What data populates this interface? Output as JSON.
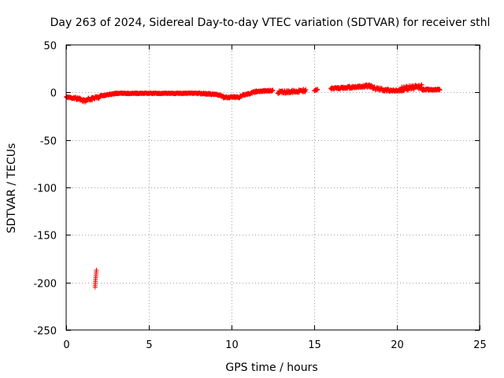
{
  "chart_data": {
    "type": "scatter",
    "title": "Day 263 of 2024, Sidereal Day-to-day VTEC variation (SDTVAR) for receiver sthl",
    "xlabel": "GPS time / hours",
    "ylabel": "SDTVAR / TECUs",
    "xlim": [
      0,
      25
    ],
    "ylim": [
      -250,
      50
    ],
    "xticks": [
      0,
      5,
      10,
      15,
      20,
      25
    ],
    "yticks": [
      -250,
      -200,
      -150,
      -100,
      -50,
      0,
      50
    ],
    "grid": true,
    "marker_color": "#ff0000",
    "series": [
      {
        "name": "SDTVAR",
        "segments": [
          {
            "x0": 0.0,
            "x1": 0.5,
            "y0": -5,
            "y1": -6,
            "jitter": 2
          },
          {
            "x0": 0.5,
            "x1": 1.2,
            "y0": -6,
            "y1": -9,
            "jitter": 3
          },
          {
            "x0": 1.2,
            "x1": 2.0,
            "y0": -8,
            "y1": -5,
            "jitter": 3
          },
          {
            "x0": 2.0,
            "x1": 3.0,
            "y0": -4,
            "y1": -1,
            "jitter": 1.5
          },
          {
            "x0": 3.0,
            "x1": 5.0,
            "y0": -1,
            "y1": -1,
            "jitter": 1
          },
          {
            "x0": 5.0,
            "x1": 8.0,
            "y0": -1,
            "y1": -1,
            "jitter": 1
          },
          {
            "x0": 8.0,
            "x1": 9.0,
            "y0": -1,
            "y1": -2,
            "jitter": 1.5
          },
          {
            "x0": 9.0,
            "x1": 9.5,
            "y0": -2,
            "y1": -4,
            "jitter": 1.5
          },
          {
            "x0": 9.5,
            "x1": 10.5,
            "y0": -5,
            "y1": -5,
            "jitter": 2
          },
          {
            "x0": 10.5,
            "x1": 11.5,
            "y0": -4,
            "y1": 1,
            "jitter": 2
          },
          {
            "x0": 11.5,
            "x1": 12.5,
            "y0": 1,
            "y1": 2,
            "jitter": 1.5
          },
          {
            "x0": 12.8,
            "x1": 14.5,
            "y0": 0,
            "y1": 2,
            "jitter": 3
          },
          {
            "x0": 15.0,
            "x1": 15.2,
            "y0": 2,
            "y1": 3,
            "jitter": 1
          },
          {
            "x0": 16.0,
            "x1": 17.0,
            "y0": 4,
            "y1": 5,
            "jitter": 2
          },
          {
            "x0": 17.0,
            "x1": 18.5,
            "y0": 5,
            "y1": 7,
            "jitter": 3
          },
          {
            "x0": 18.5,
            "x1": 19.5,
            "y0": 5,
            "y1": 2,
            "jitter": 3
          },
          {
            "x0": 19.5,
            "x1": 20.3,
            "y0": 2,
            "y1": 2,
            "jitter": 2
          },
          {
            "x0": 20.3,
            "x1": 21.5,
            "y0": 4,
            "y1": 6,
            "jitter": 5
          },
          {
            "x0": 21.5,
            "x1": 22.6,
            "y0": 3,
            "y1": 3,
            "jitter": 1.5
          }
        ],
        "outliers": [
          {
            "x": 1.75,
            "y": -205
          },
          {
            "x": 1.75,
            "y": -203
          },
          {
            "x": 1.76,
            "y": -201
          },
          {
            "x": 1.77,
            "y": -199
          },
          {
            "x": 1.78,
            "y": -197
          },
          {
            "x": 1.79,
            "y": -195
          },
          {
            "x": 1.8,
            "y": -193
          },
          {
            "x": 1.81,
            "y": -191
          },
          {
            "x": 1.82,
            "y": -189
          },
          {
            "x": 1.83,
            "y": -187
          }
        ]
      }
    ]
  }
}
